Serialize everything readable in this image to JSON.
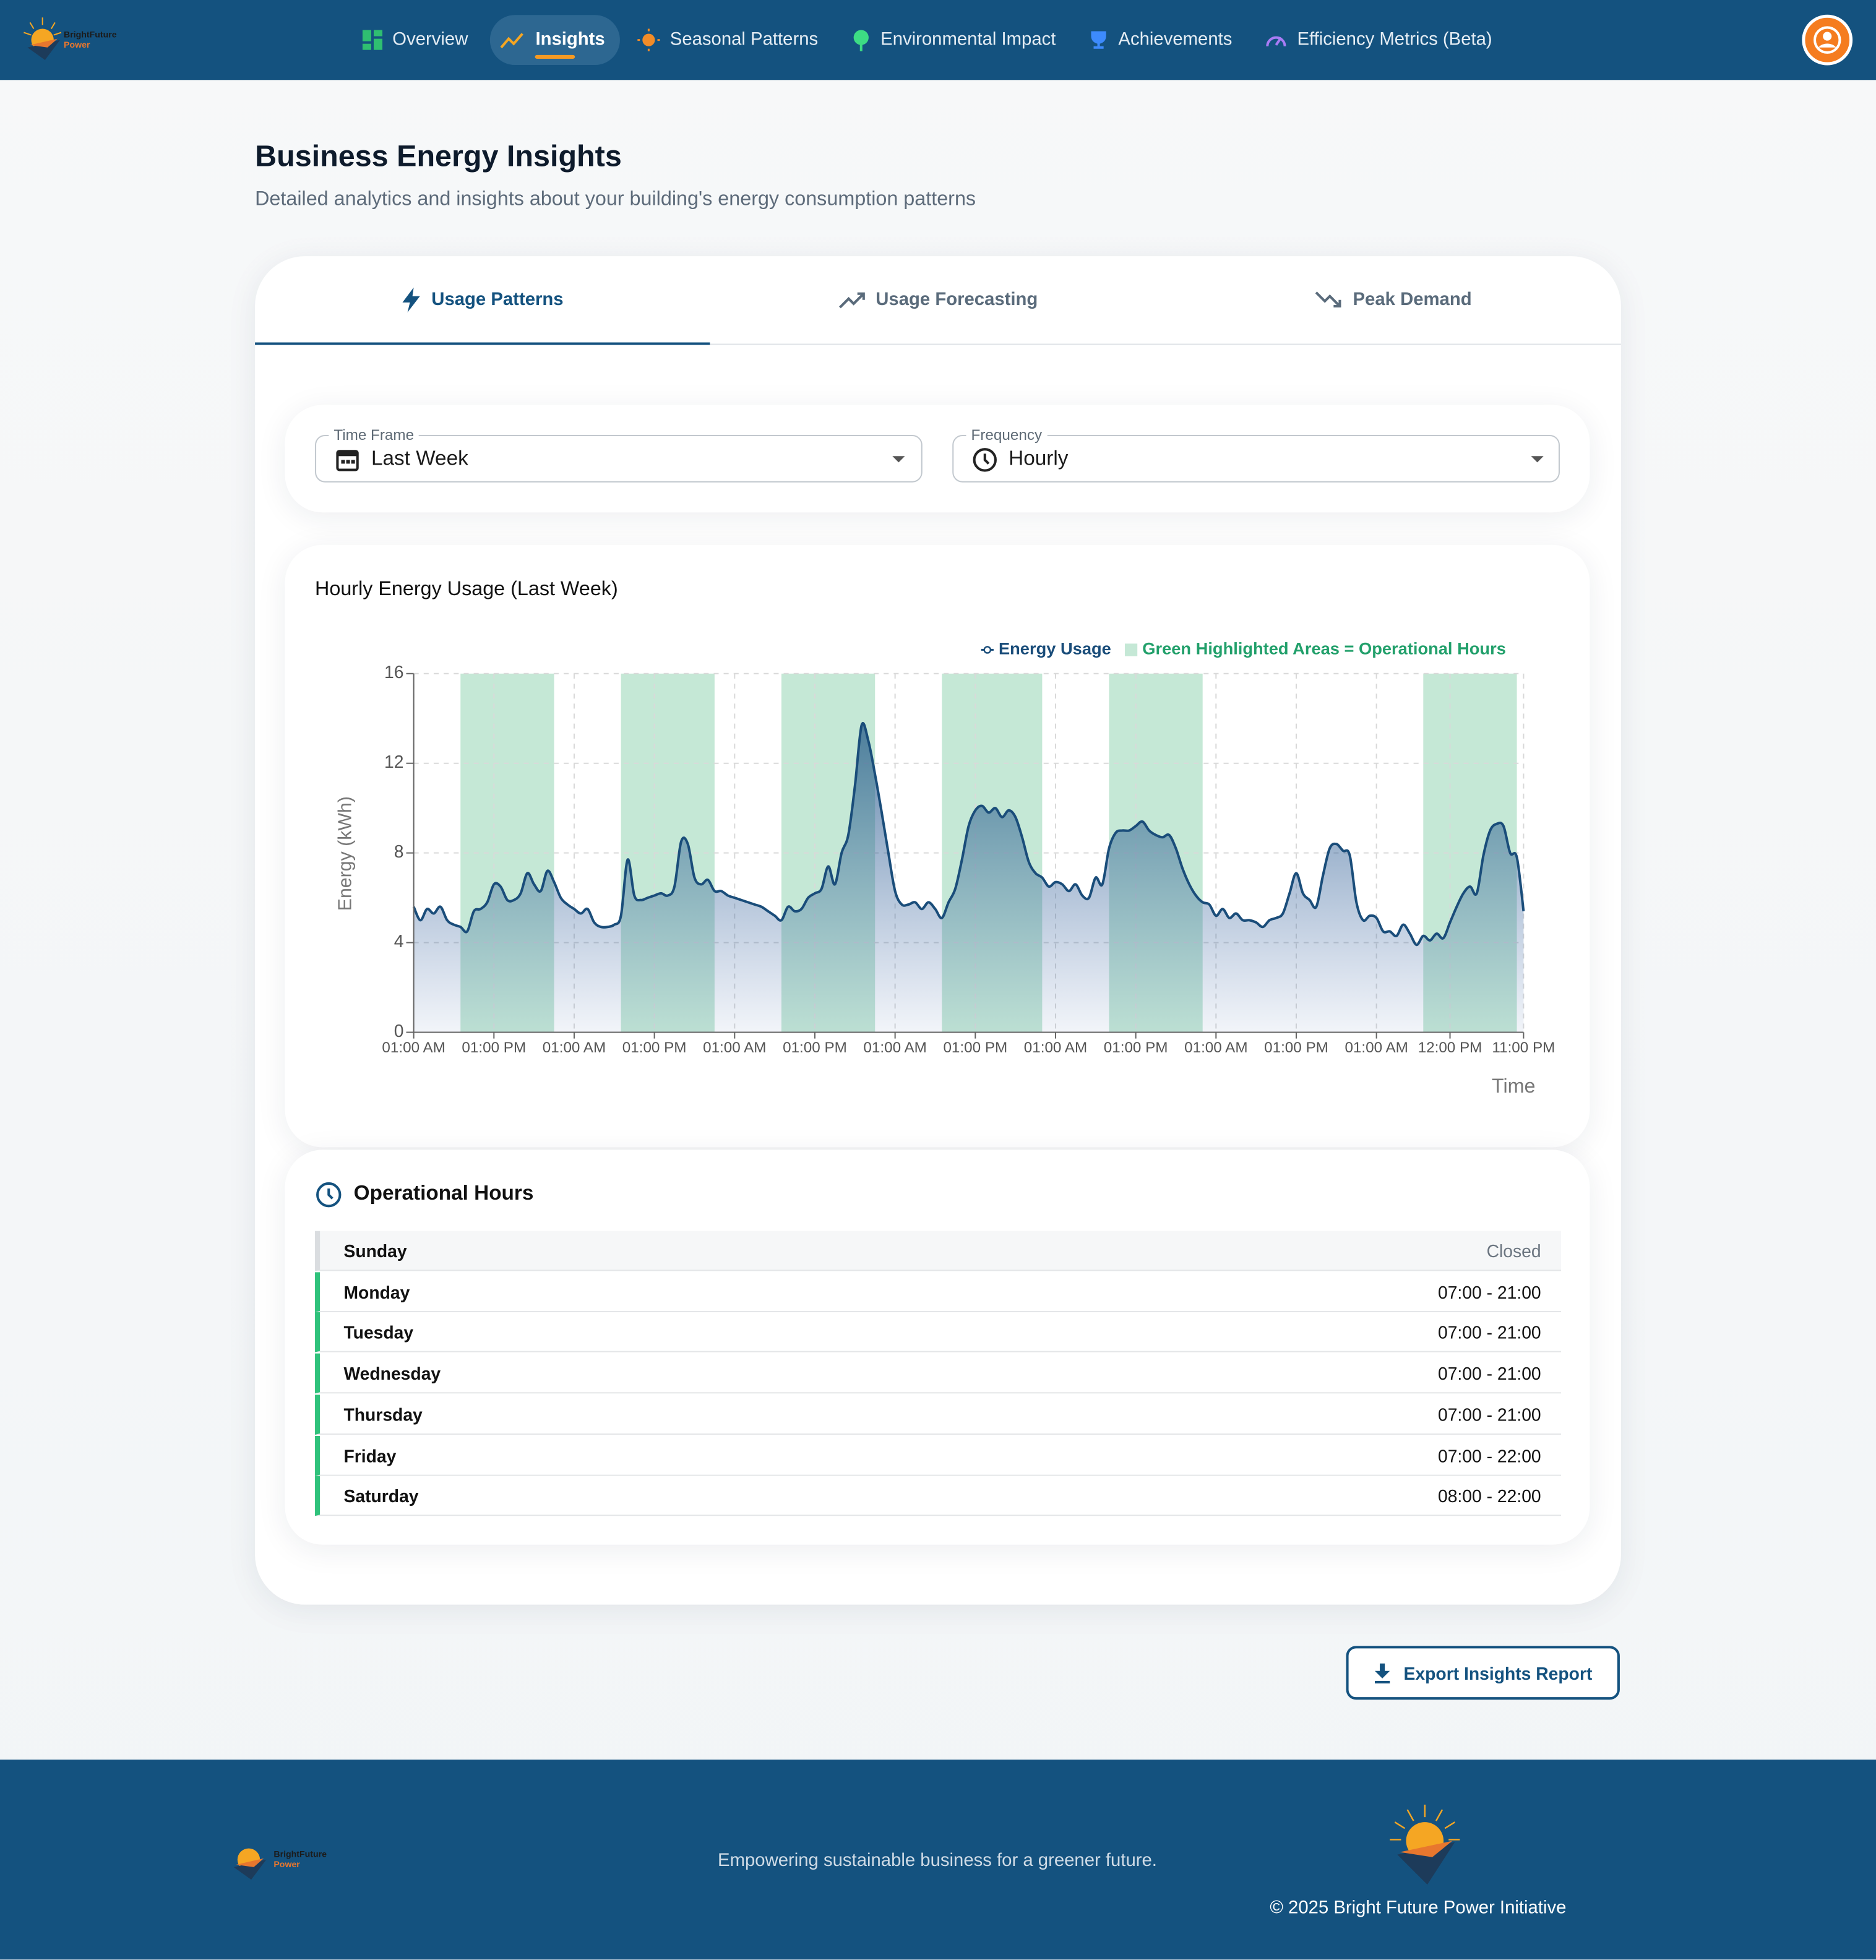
{
  "nav": {
    "brand_line1": "BrightFuture",
    "brand_line2": "Power",
    "items": [
      "Overview",
      "Insights",
      "Seasonal Patterns",
      "Environmental Impact",
      "Achievements",
      "Efficiency Metrics (Beta)"
    ]
  },
  "page": {
    "title": "Business Energy Insights",
    "subtitle": "Detailed analytics and insights about your building's energy consumption patterns"
  },
  "tabs": [
    "Usage Patterns",
    "Usage Forecasting",
    "Peak Demand"
  ],
  "filters": [
    {
      "label": "Time Frame",
      "value": "Last Week"
    },
    {
      "label": "Frequency",
      "value": "Hourly"
    }
  ],
  "chart_data": {
    "type": "area",
    "title": "Hourly Energy Usage (Last Week)",
    "y_label": "Energy (kWh)",
    "x_label": "Time",
    "highlight_label": "Green Highlighted Areas = Operational Hours",
    "highlight_color": "#c5e8d6",
    "highlight_ranges": [
      [
        7,
        21
      ],
      [
        31,
        45
      ],
      [
        55,
        69
      ],
      [
        79,
        94
      ],
      [
        104,
        118
      ],
      [
        151,
        165
      ]
    ],
    "categories": [
      "01:00 AM",
      null,
      null,
      null,
      null,
      null,
      null,
      null,
      null,
      null,
      null,
      null,
      "01:00 PM",
      null,
      null,
      null,
      null,
      null,
      null,
      null,
      null,
      null,
      null,
      null,
      "01:00 AM",
      null,
      null,
      null,
      null,
      null,
      null,
      null,
      null,
      null,
      null,
      null,
      "01:00 PM",
      null,
      null,
      null,
      null,
      null,
      null,
      null,
      null,
      null,
      null,
      null,
      "01:00 AM",
      null,
      null,
      null,
      null,
      null,
      null,
      null,
      null,
      null,
      null,
      null,
      "01:00 PM",
      null,
      null,
      null,
      null,
      null,
      null,
      null,
      null,
      null,
      null,
      null,
      "01:00 AM",
      null,
      null,
      null,
      null,
      null,
      null,
      null,
      null,
      null,
      null,
      null,
      "01:00 PM",
      null,
      null,
      null,
      null,
      null,
      null,
      null,
      null,
      null,
      null,
      null,
      "01:00 AM",
      null,
      null,
      null,
      null,
      null,
      null,
      null,
      null,
      null,
      null,
      null,
      "01:00 PM",
      null,
      null,
      null,
      null,
      null,
      null,
      null,
      null,
      null,
      null,
      null,
      "01:00 AM",
      null,
      null,
      null,
      null,
      null,
      null,
      null,
      null,
      null,
      null,
      null,
      "01:00 PM",
      null,
      null,
      null,
      null,
      null,
      null,
      null,
      null,
      null,
      null,
      null,
      "01:00 AM",
      null,
      null,
      null,
      null,
      null,
      null,
      null,
      null,
      null,
      null,
      "12:00 PM",
      null,
      null,
      null,
      null,
      null,
      null,
      null,
      null,
      null,
      null,
      "11:00 PM"
    ],
    "series": [
      {
        "name": "Energy Usage",
        "color": "#1a4d7a",
        "values": [
          5.6,
          5.0,
          5.5,
          5.3,
          5.6,
          5.0,
          4.8,
          4.7,
          4.5,
          5.4,
          5.5,
          5.8,
          6.6,
          6.5,
          5.9,
          5.9,
          6.2,
          7.1,
          6.6,
          6.3,
          7.2,
          6.7,
          6.0,
          5.7,
          5.5,
          5.3,
          5.5,
          4.9,
          4.7,
          4.7,
          4.8,
          5.2,
          7.7,
          6.1,
          5.9,
          6.0,
          6.1,
          6.2,
          6.1,
          6.5,
          8.5,
          8.4,
          6.9,
          6.6,
          6.8,
          6.3,
          6.3,
          6.1,
          6.0,
          5.9,
          5.8,
          5.7,
          5.6,
          5.4,
          5.2,
          5.0,
          5.6,
          5.4,
          5.5,
          6.0,
          6.2,
          6.4,
          7.4,
          6.6,
          8.0,
          8.8,
          11.0,
          13.7,
          13.0,
          11.5,
          9.8,
          8.0,
          6.3,
          5.7,
          5.7,
          5.8,
          5.5,
          5.8,
          5.5,
          5.1,
          5.8,
          6.4,
          7.7,
          9.2,
          9.9,
          10.1,
          9.8,
          10.0,
          9.6,
          9.9,
          9.6,
          8.7,
          7.6,
          7.1,
          6.9,
          6.5,
          6.7,
          6.6,
          6.3,
          6.6,
          6.1,
          6.0,
          6.9,
          6.6,
          8.2,
          8.9,
          9.0,
          9.0,
          9.2,
          9.4,
          9.0,
          8.8,
          8.7,
          8.8,
          8.2,
          7.3,
          6.6,
          6.1,
          5.8,
          5.7,
          5.2,
          5.5,
          5.1,
          5.3,
          5.0,
          5.0,
          4.9,
          4.7,
          5.0,
          5.1,
          5.3,
          6.2,
          7.1,
          6.2,
          5.9,
          5.6,
          7.0,
          8.2,
          8.4,
          8.1,
          7.9,
          5.8,
          5.0,
          5.2,
          5.1,
          4.5,
          4.5,
          4.3,
          4.8,
          4.4,
          3.9,
          4.3,
          4.1,
          4.4,
          4.2,
          4.9,
          5.6,
          6.2,
          6.5,
          6.2,
          7.9,
          9.0,
          9.3,
          9.2,
          8.0,
          7.8,
          5.4
        ]
      }
    ],
    "ylim": [
      0,
      16
    ],
    "yticks": [
      0,
      4,
      8,
      12,
      16
    ],
    "grid": true
  },
  "operational_hours": {
    "title": "Operational Hours",
    "rows": [
      {
        "day": "Sunday",
        "hours": "Closed",
        "open": false
      },
      {
        "day": "Monday",
        "hours": "07:00 - 21:00",
        "open": true
      },
      {
        "day": "Tuesday",
        "hours": "07:00 - 21:00",
        "open": true
      },
      {
        "day": "Wednesday",
        "hours": "07:00 - 21:00",
        "open": true
      },
      {
        "day": "Thursday",
        "hours": "07:00 - 21:00",
        "open": true
      },
      {
        "day": "Friday",
        "hours": "07:00 - 22:00",
        "open": true
      },
      {
        "day": "Saturday",
        "hours": "08:00 - 22:00",
        "open": true
      }
    ]
  },
  "export_button": "Export Insights Report",
  "footer": {
    "brand_line1": "BrightFuture",
    "brand_line2": "Power",
    "tagline": "Empowering sustainable business for a greener future.",
    "copyright": "© 2025 Bright Future Power Initiative"
  }
}
